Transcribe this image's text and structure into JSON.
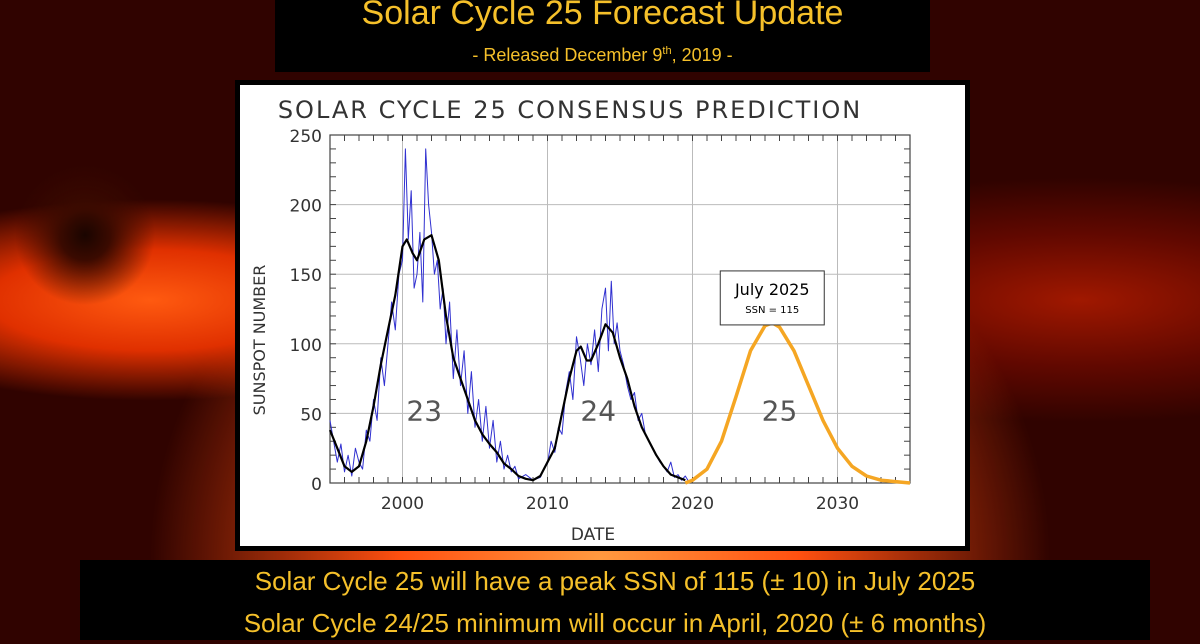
{
  "header": {
    "title": "Solar Cycle 25 Forecast Update",
    "subtitle_pre": "- Released December 9",
    "subtitle_sup": "th",
    "subtitle_post": ", 2019 -"
  },
  "footer": {
    "line1": "Solar Cycle 25 will have a peak SSN of 115 (± 10) in July 2025",
    "line2": "Solar Cycle 24/25 minimum will occur in April, 2020 (± 6 months)"
  },
  "chart_data": {
    "type": "line",
    "title": "SOLAR CYCLE 25 CONSENSUS PREDICTION",
    "xlabel": "DATE",
    "ylabel": "SUNSPOT NUMBER",
    "xlim": [
      1995,
      2035
    ],
    "ylim": [
      0,
      250
    ],
    "xticks": [
      2000,
      2010,
      2020,
      2030
    ],
    "yticks": [
      0,
      50,
      100,
      150,
      200,
      250
    ],
    "grid": true,
    "colors": {
      "monthly": "#3030d0",
      "smoothed": "#000000",
      "prediction": "#f5a623"
    },
    "cycle_labels": [
      {
        "text": "23",
        "x": 2001.5,
        "y": 45
      },
      {
        "text": "24",
        "x": 2013.5,
        "y": 45
      },
      {
        "text": "25",
        "x": 2026,
        "y": 45
      }
    ],
    "annotation": {
      "title": "July 2025",
      "text": "SSN = 115",
      "x": 2025.5,
      "y": 115
    },
    "series": [
      {
        "role": "monthly",
        "x": [
          1995,
          1995.25,
          1995.5,
          1995.75,
          1996,
          1996.25,
          1996.5,
          1996.75,
          1997,
          1997.25,
          1997.5,
          1997.75,
          1998,
          1998.25,
          1998.5,
          1998.75,
          1999,
          1999.25,
          1999.5,
          1999.75,
          2000,
          2000.2,
          2000.4,
          2000.6,
          2000.8,
          2001,
          2001.2,
          2001.4,
          2001.6,
          2001.8,
          2002,
          2002.2,
          2002.4,
          2002.6,
          2002.8,
          2003,
          2003.25,
          2003.5,
          2003.75,
          2004,
          2004.25,
          2004.5,
          2004.75,
          2005,
          2005.25,
          2005.5,
          2005.75,
          2006,
          2006.25,
          2006.5,
          2006.75,
          2007,
          2007.25,
          2007.5,
          2007.75,
          2008,
          2008.5,
          2009,
          2009.5,
          2009.75,
          2010,
          2010.25,
          2010.5,
          2010.75,
          2011,
          2011.25,
          2011.5,
          2011.75,
          2012,
          2012.25,
          2012.5,
          2012.75,
          2013,
          2013.25,
          2013.5,
          2013.75,
          2014,
          2014.2,
          2014.4,
          2014.6,
          2014.8,
          2015,
          2015.25,
          2015.5,
          2015.75,
          2016,
          2016.25,
          2016.5,
          2016.75,
          2017,
          2017.25,
          2017.5,
          2017.75,
          2018,
          2018.25,
          2018.5,
          2018.75,
          2019,
          2019.25,
          2019.5,
          2019.8
        ],
        "y": [
          45,
          30,
          15,
          28,
          8,
          20,
          5,
          25,
          15,
          10,
          38,
          30,
          60,
          45,
          90,
          70,
          100,
          130,
          110,
          150,
          160,
          240,
          175,
          210,
          140,
          150,
          180,
          130,
          240,
          200,
          180,
          150,
          160,
          125,
          140,
          100,
          130,
          75,
          110,
          70,
          95,
          50,
          80,
          40,
          60,
          30,
          55,
          25,
          45,
          15,
          30,
          10,
          20,
          8,
          12,
          3,
          6,
          2,
          4,
          10,
          14,
          30,
          22,
          40,
          35,
          65,
          80,
          60,
          105,
          90,
          70,
          100,
          85,
          110,
          80,
          125,
          140,
          95,
          145,
          100,
          115,
          95,
          85,
          70,
          60,
          65,
          45,
          50,
          35,
          30,
          25,
          20,
          15,
          12,
          8,
          15,
          4,
          6,
          2,
          5,
          0
        ]
      },
      {
        "role": "smoothed",
        "x": [
          1995,
          1995.5,
          1996,
          1996.5,
          1997,
          1997.5,
          1998,
          1998.5,
          1999,
          1999.5,
          2000,
          2000.3,
          2000.7,
          2001,
          2001.5,
          2002,
          2002.5,
          2003,
          2003.5,
          2004,
          2004.5,
          2005,
          2005.5,
          2006,
          2006.5,
          2007,
          2007.5,
          2008,
          2008.5,
          2009,
          2009.5,
          2010,
          2010.5,
          2011,
          2011.5,
          2012,
          2012.3,
          2012.7,
          2013,
          2013.5,
          2014,
          2014.5,
          2015,
          2015.5,
          2016,
          2016.5,
          2017,
          2017.5,
          2018,
          2018.5,
          2019,
          2019.5
        ],
        "y": [
          38,
          25,
          12,
          8,
          12,
          30,
          55,
          85,
          110,
          135,
          170,
          175,
          165,
          160,
          175,
          178,
          160,
          120,
          90,
          75,
          60,
          45,
          35,
          28,
          22,
          14,
          10,
          5,
          3,
          2,
          5,
          15,
          25,
          50,
          75,
          95,
          98,
          88,
          88,
          100,
          114,
          108,
          90,
          75,
          55,
          40,
          30,
          20,
          12,
          6,
          4,
          2
        ]
      },
      {
        "role": "prediction",
        "x": [
          2019.5,
          2020,
          2021,
          2022,
          2023,
          2024,
          2025,
          2025.5,
          2026,
          2027,
          2028,
          2029,
          2030,
          2031,
          2032,
          2033,
          2034,
          2035
        ],
        "y": [
          0,
          2,
          10,
          30,
          62,
          95,
          113,
          115,
          112,
          95,
          70,
          45,
          25,
          12,
          5,
          2,
          1,
          0
        ]
      }
    ]
  }
}
